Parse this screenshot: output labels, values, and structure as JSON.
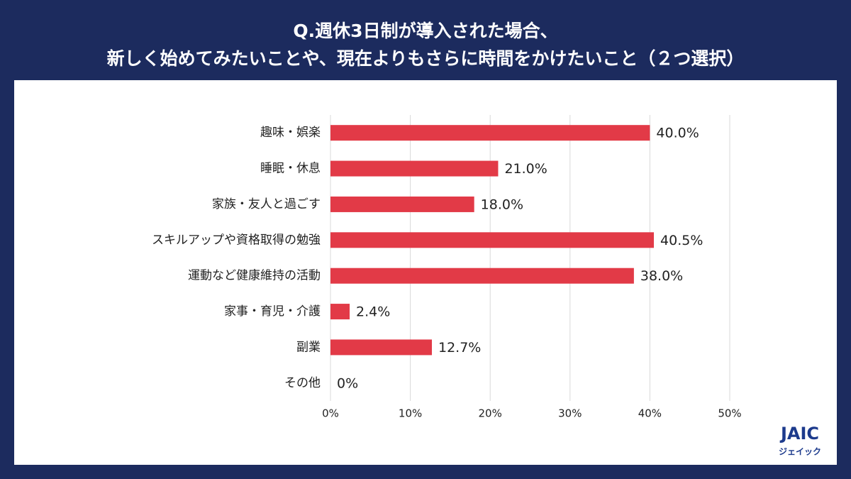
{
  "chart_data": {
    "type": "bar",
    "orientation": "horizontal",
    "title": [
      "Q.週休3日制が導入された場合、",
      "新しく始めてみたいことや、現在よりもさらに時間をかけたいこと（２つ選択）"
    ],
    "categories": [
      "趣味・娯楽",
      "睡眠・休息",
      "家族・友人と過ごす",
      "スキルアップや資格取得の勉強",
      "運動など健康維持の活動",
      "家事・育児・介護",
      "副業",
      "その他"
    ],
    "values": [
      40.0,
      21.0,
      18.0,
      40.5,
      38.0,
      2.4,
      12.7,
      0
    ],
    "value_labels": [
      "40.0%",
      "21.0%",
      "18.0%",
      "40.5%",
      "38.0%",
      "2.4%",
      "12.7%",
      "0%"
    ],
    "color": "#e23a47",
    "xlim": [
      0,
      50
    ],
    "xticks": [
      {
        "value": 0,
        "label": "0%"
      },
      {
        "value": 10,
        "label": "10%"
      },
      {
        "value": 20,
        "label": "20%"
      },
      {
        "value": 30,
        "label": "30%"
      },
      {
        "value": 40,
        "label": "40%"
      },
      {
        "value": 50,
        "label": "50%"
      }
    ],
    "grid": true
  },
  "logo": {
    "mark": "JAIC",
    "text": "ジェイック"
  }
}
